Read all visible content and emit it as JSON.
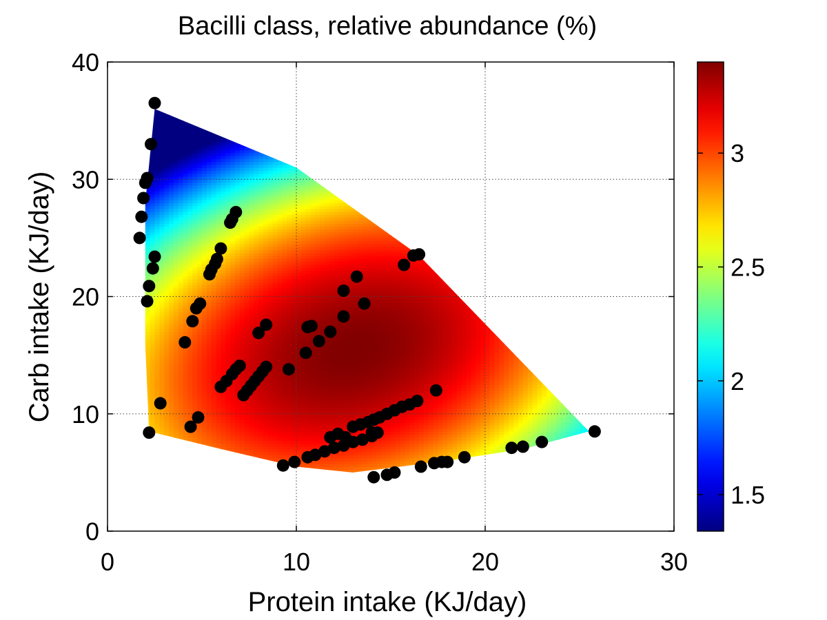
{
  "chart_data": {
    "type": "heatmap",
    "title": "Bacilli class, relative abundance (%)",
    "xlabel": "Protein intake (KJ/day)",
    "ylabel": "Carb intake (KJ/day)",
    "xlim": [
      0,
      30
    ],
    "ylim": [
      0,
      40
    ],
    "x_ticks": [
      0,
      10,
      20,
      30
    ],
    "y_ticks": [
      0,
      10,
      20,
      30,
      40
    ],
    "grid": true,
    "grid_style": "dotted",
    "colormap": "jet",
    "colorbar": {
      "range": [
        1.34,
        3.4
      ],
      "ticks": [
        1.5,
        2,
        2.5,
        3
      ],
      "tick_labels": [
        "1.5",
        "2",
        "2.5",
        "3"
      ]
    },
    "surface": {
      "description": "fitted response surface over the sampled diet region",
      "peak_value": 3.4,
      "peak_x": 13,
      "peak_y": 15.5,
      "min_value": 1.34,
      "region_polygon": [
        [
          2.5,
          36
        ],
        [
          10,
          31
        ],
        [
          16.5,
          23.5
        ],
        [
          25.5,
          8.5
        ],
        [
          22,
          7
        ],
        [
          18,
          6
        ],
        [
          13,
          5
        ],
        [
          10,
          5.5
        ],
        [
          6,
          7
        ],
        [
          2.2,
          8.5
        ],
        [
          2.0,
          16
        ],
        [
          2.0,
          28
        ]
      ]
    },
    "points": [
      [
        2.5,
        36.5
      ],
      [
        2.3,
        33.0
      ],
      [
        2.1,
        30.1
      ],
      [
        2.0,
        29.7
      ],
      [
        1.9,
        28.4
      ],
      [
        1.8,
        26.8
      ],
      [
        1.7,
        25.0
      ],
      [
        2.5,
        23.4
      ],
      [
        2.4,
        22.4
      ],
      [
        2.2,
        20.9
      ],
      [
        2.1,
        19.6
      ],
      [
        2.8,
        10.9
      ],
      [
        2.2,
        8.4
      ],
      [
        4.1,
        16.1
      ],
      [
        4.5,
        17.9
      ],
      [
        4.7,
        19.0
      ],
      [
        4.9,
        19.4
      ],
      [
        4.4,
        8.9
      ],
      [
        4.8,
        9.7
      ],
      [
        5.4,
        21.9
      ],
      [
        5.5,
        22.3
      ],
      [
        5.7,
        22.8
      ],
      [
        5.8,
        23.2
      ],
      [
        6.0,
        24.1
      ],
      [
        6.5,
        26.3
      ],
      [
        6.6,
        26.6
      ],
      [
        6.8,
        27.2
      ],
      [
        6.0,
        12.3
      ],
      [
        6.3,
        12.8
      ],
      [
        6.6,
        13.4
      ],
      [
        6.8,
        13.8
      ],
      [
        7.0,
        14.1
      ],
      [
        7.2,
        11.6
      ],
      [
        7.4,
        12.0
      ],
      [
        7.6,
        12.4
      ],
      [
        7.8,
        12.8
      ],
      [
        8.0,
        13.2
      ],
      [
        8.2,
        13.6
      ],
      [
        8.4,
        14.0
      ],
      [
        8.0,
        16.9
      ],
      [
        8.4,
        17.6
      ],
      [
        9.6,
        13.8
      ],
      [
        9.3,
        5.6
      ],
      [
        9.9,
        5.9
      ],
      [
        10.6,
        6.3
      ],
      [
        11.0,
        6.5
      ],
      [
        11.5,
        6.8
      ],
      [
        12.0,
        7.1
      ],
      [
        12.5,
        7.3
      ],
      [
        13.0,
        7.6
      ],
      [
        13.5,
        7.8
      ],
      [
        14.0,
        8.1
      ],
      [
        11.8,
        8.0
      ],
      [
        12.2,
        8.3
      ],
      [
        12.6,
        8.0
      ],
      [
        10.5,
        15.2
      ],
      [
        10.6,
        17.4
      ],
      [
        10.8,
        17.5
      ],
      [
        11.2,
        16.2
      ],
      [
        11.8,
        17.0
      ],
      [
        12.5,
        18.3
      ],
      [
        12.5,
        20.5
      ],
      [
        13.2,
        21.7
      ],
      [
        13.6,
        19.4
      ],
      [
        13.0,
        8.9
      ],
      [
        13.4,
        9.1
      ],
      [
        13.8,
        9.3
      ],
      [
        14.1,
        9.5
      ],
      [
        14.4,
        9.7
      ],
      [
        14.8,
        10.0
      ],
      [
        14.0,
        8.4
      ],
      [
        14.3,
        8.4
      ],
      [
        15.2,
        10.3
      ],
      [
        15.6,
        10.6
      ],
      [
        16.0,
        10.8
      ],
      [
        16.4,
        11.1
      ],
      [
        17.4,
        12.0
      ],
      [
        15.7,
        22.7
      ],
      [
        16.2,
        23.5
      ],
      [
        16.5,
        23.6
      ],
      [
        14.1,
        4.6
      ],
      [
        14.8,
        4.8
      ],
      [
        15.2,
        5.0
      ],
      [
        16.6,
        5.5
      ],
      [
        17.3,
        5.8
      ],
      [
        17.7,
        5.9
      ],
      [
        18.0,
        5.9
      ],
      [
        18.9,
        6.3
      ],
      [
        21.4,
        7.1
      ],
      [
        22.0,
        7.2
      ],
      [
        23.0,
        7.6
      ],
      [
        25.8,
        8.5
      ]
    ]
  }
}
